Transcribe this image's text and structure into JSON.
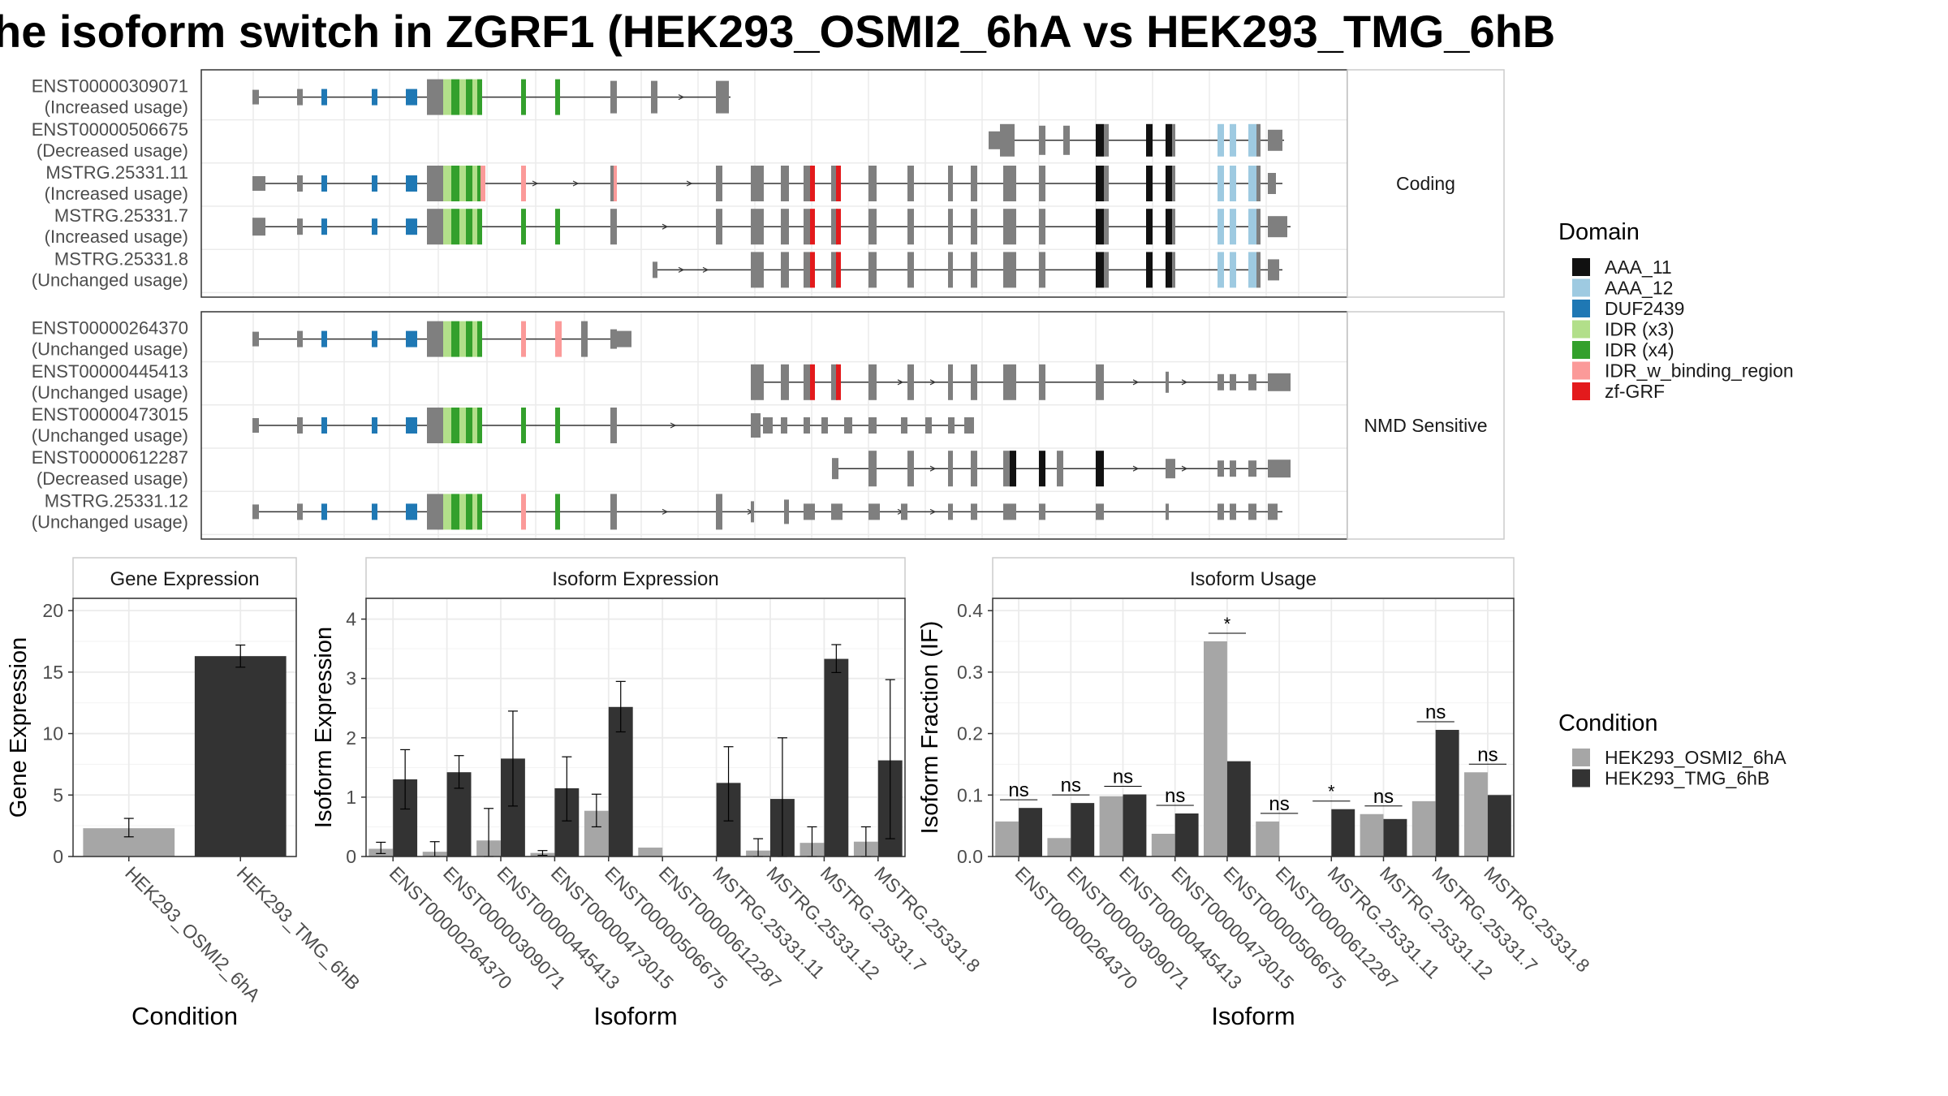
{
  "title": "he isoform switch in ZGRF1 (HEK293_OSMI2_6hA vs HEK293_TMG_6hB",
  "colors": {
    "AAA_11": "#111111",
    "AAA_12": "#9ecae1",
    "DUF2439": "#1f78b4",
    "IDR (x3)": "#b2df8a",
    "IDR (x4)": "#33a02c",
    "IDR_w_binding_region": "#fb9a99",
    "zf-GRF": "#e31a1c",
    "exon": "#7f7f7f",
    "HEK293_OSMI2_6hA": "#a6a6a6",
    "HEK293_TMG_6hB": "#333333"
  },
  "legend_domain": {
    "title": "Domain",
    "items": [
      "AAA_11",
      "AAA_12",
      "DUF2439",
      "IDR (x3)",
      "IDR (x4)",
      "IDR_w_binding_region",
      "zf-GRF"
    ]
  },
  "legend_condition": {
    "title": "Condition",
    "items": [
      "HEK293_OSMI2_6hA",
      "HEK293_TMG_6hB"
    ]
  },
  "structure": {
    "coding_label": "Coding",
    "nmd_label": "NMD Sensitive",
    "coding": [
      {
        "id": "ENST00000309071",
        "status": "(Increased usage)"
      },
      {
        "id": "ENST00000506675",
        "status": "(Decreased usage)"
      },
      {
        "id": "MSTRG.25331.11",
        "status": "(Increased usage)"
      },
      {
        "id": "MSTRG.25331.7",
        "status": "(Increased usage)"
      },
      {
        "id": "MSTRG.25331.8",
        "status": "(Unchanged usage)"
      }
    ],
    "nmd": [
      {
        "id": "ENST00000264370",
        "status": "(Unchanged usage)"
      },
      {
        "id": "ENST00000445413",
        "status": "(Unchanged usage)"
      },
      {
        "id": "ENST00000473015",
        "status": "(Unchanged usage)"
      },
      {
        "id": "ENST00000612287",
        "status": "(Decreased usage)"
      },
      {
        "id": "MSTRG.25331.12",
        "status": "(Unchanged usage)"
      }
    ]
  },
  "chart_data": [
    {
      "type": "bar",
      "title": "Gene Expression",
      "xlabel": "Condition",
      "ylabel": "Gene Expression",
      "categories": [
        "HEK293_OSMI2_6hA",
        "HEK293_TMG_6hB"
      ],
      "values": [
        2.3,
        16.3
      ],
      "error_low": [
        1.6,
        15.4
      ],
      "error_high": [
        3.1,
        17.2
      ],
      "ylim": [
        0,
        21
      ],
      "yticks": [
        0,
        5,
        10,
        15,
        20
      ]
    },
    {
      "type": "bar",
      "title": "Isoform Expression",
      "xlabel": "Isoform",
      "ylabel": "Isoform Expression",
      "categories": [
        "ENST00000264370",
        "ENST00000309071",
        "ENST00000445413",
        "ENST00000473015",
        "ENST00000506675",
        "ENST00000612287",
        "MSTRG.25331.11",
        "MSTRG.25331.12",
        "MSTRG.25331.7",
        "MSTRG.25331.8"
      ],
      "series": [
        {
          "name": "HEK293_OSMI2_6hA",
          "values": [
            0.13,
            0.08,
            0.27,
            0.06,
            0.77,
            0.15,
            0.0,
            0.1,
            0.23,
            0.25
          ],
          "err_low": [
            0.05,
            0.0,
            0.0,
            0.02,
            0.5,
            0.0,
            0.0,
            0.0,
            0.0,
            0.0
          ],
          "err_high": [
            0.24,
            0.25,
            0.81,
            0.1,
            1.05,
            0.0,
            0.0,
            0.3,
            0.5,
            0.5
          ]
        },
        {
          "name": "HEK293_TMG_6hB",
          "values": [
            1.3,
            1.42,
            1.65,
            1.15,
            2.52,
            0.0,
            1.24,
            0.97,
            3.33,
            1.62
          ],
          "err_low": [
            0.8,
            1.15,
            0.85,
            0.6,
            2.1,
            0.0,
            0.6,
            0.0,
            3.1,
            0.3
          ],
          "err_high": [
            1.8,
            1.7,
            2.45,
            1.68,
            2.95,
            0.0,
            1.85,
            2.0,
            3.57,
            2.98
          ]
        }
      ],
      "ylim": [
        0,
        4.35
      ],
      "yticks": [
        0,
        1,
        2,
        3,
        4
      ]
    },
    {
      "type": "bar",
      "title": "Isoform Usage",
      "xlabel": "Isoform",
      "ylabel": "Isoform Fraction (IF)",
      "categories": [
        "ENST00000264370",
        "ENST00000309071",
        "ENST00000445413",
        "ENST00000473015",
        "ENST00000506675",
        "ENST00000612287",
        "MSTRG.25331.11",
        "MSTRG.25331.12",
        "MSTRG.25331.7",
        "MSTRG.25331.8"
      ],
      "series": [
        {
          "name": "HEK293_OSMI2_6hA",
          "values": [
            0.057,
            0.03,
            0.098,
            0.037,
            0.35,
            0.057,
            0.0,
            0.069,
            0.09,
            0.137
          ]
        },
        {
          "name": "HEK293_TMG_6hB",
          "values": [
            0.079,
            0.087,
            0.101,
            0.07,
            0.155,
            0.0,
            0.077,
            0.061,
            0.206,
            0.1
          ]
        }
      ],
      "significance": [
        "ns",
        "ns",
        "ns",
        "ns",
        "*",
        "ns",
        "*",
        "ns",
        "ns",
        "ns"
      ],
      "ylim": [
        0,
        0.42
      ],
      "yticks": [
        0.0,
        0.1,
        0.2,
        0.3,
        0.4
      ]
    }
  ]
}
